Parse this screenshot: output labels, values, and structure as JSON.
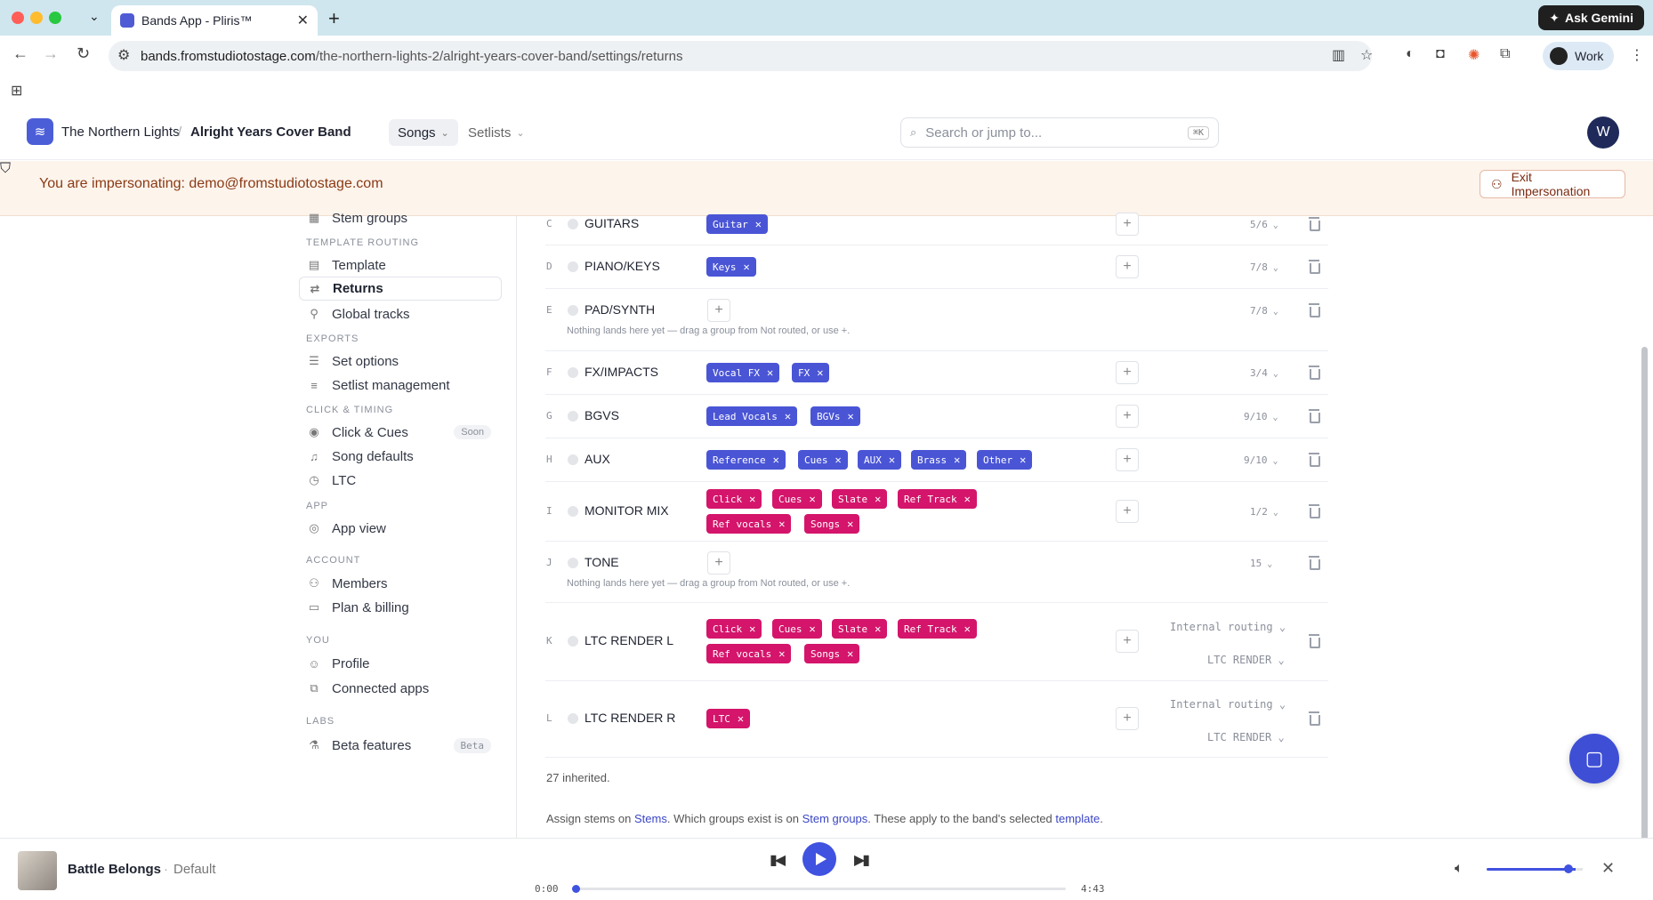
{
  "browser": {
    "tab_title": "Bands App - Pliris™",
    "url_host": "bands.fromstudiotostage.com",
    "url_path": "/the-northern-lights-2/alright-years-cover-band/settings/returns",
    "ask_gemini": "Ask Gemini",
    "profile": "Work"
  },
  "header": {
    "band": "The Northern Lights",
    "project": "Alright Years Cover Band",
    "nav_songs": "Songs",
    "nav_setlists": "Setlists",
    "search_placeholder": "Search or jump to...",
    "search_kbd": "⌘K",
    "avatar": "W"
  },
  "banner": {
    "text": "You are impersonating: demo@fromstudiotostage.com",
    "exit": "Exit Impersonation"
  },
  "sidebar": {
    "stem_groups": "Stem groups",
    "sec_template_routing": "TEMPLATE ROUTING",
    "template": "Template",
    "returns": "Returns",
    "global_tracks": "Global tracks",
    "sec_exports": "EXPORTS",
    "set_options": "Set options",
    "setlist_management": "Setlist management",
    "sec_click_timing": "CLICK & TIMING",
    "click_cues": "Click & Cues",
    "soon": "Soon",
    "song_defaults": "Song defaults",
    "ltc": "LTC",
    "sec_app": "APP",
    "app_view": "App view",
    "sec_account": "ACCOUNT",
    "members": "Members",
    "plan_billing": "Plan & billing",
    "sec_you": "YOU",
    "profile": "Profile",
    "connected_apps": "Connected apps",
    "sec_labs": "LABS",
    "beta_features": "Beta features",
    "beta": "Beta"
  },
  "returns": {
    "empty_hint": "Nothing lands here yet — drag a group from Not routed, or use +.",
    "internal_routing": "Internal routing",
    "ltc_render": "LTC RENDER",
    "rows": [
      {
        "letter": "C",
        "name": "GUITARS",
        "count": "5/6",
        "chips": [
          "Guitar"
        ]
      },
      {
        "letter": "D",
        "name": "PIANO/KEYS",
        "count": "7/8",
        "chips": [
          "Keys"
        ]
      },
      {
        "letter": "E",
        "name": "PAD/SYNTH",
        "count": "7/8",
        "chips": []
      },
      {
        "letter": "F",
        "name": "FX/IMPACTS",
        "count": "3/4",
        "chips": [
          "Vocal FX",
          "FX"
        ]
      },
      {
        "letter": "G",
        "name": "BGVS",
        "count": "9/10",
        "chips": [
          "Lead Vocals",
          "BGVs"
        ]
      },
      {
        "letter": "H",
        "name": "AUX",
        "count": "9/10",
        "chips": [
          "Reference",
          "Cues",
          "AUX",
          "Brass",
          "Other"
        ]
      },
      {
        "letter": "I",
        "name": "MONITOR MIX",
        "count": "1/2",
        "chips": [
          "Click",
          "Cues",
          "Slate",
          "Ref Track",
          "Ref vocals",
          "Songs"
        ]
      },
      {
        "letter": "J",
        "name": "TONE",
        "count": "15",
        "chips": []
      },
      {
        "letter": "K",
        "name": "LTC RENDER L",
        "count": "",
        "chips": [
          "Click",
          "Cues",
          "Slate",
          "Ref Track",
          "Ref vocals",
          "Songs"
        ]
      },
      {
        "letter": "L",
        "name": "LTC RENDER R",
        "count": "",
        "chips": [
          "LTC"
        ]
      }
    ],
    "inherited": "27 inherited.",
    "foot_1": "Assign stems on ",
    "foot_stems": "Stems",
    "foot_2": ". Which groups exist is on ",
    "foot_groups": "Stem groups",
    "foot_3": ". These apply to the band's selected ",
    "foot_template": "template",
    "foot_4": "."
  },
  "player": {
    "song": "Battle Belongs",
    "sep": "·",
    "version": "Default",
    "elapsed": "0:00",
    "duration": "4:43",
    "progress_fraction": 0.0,
    "volume_fraction": 0.85
  },
  "colors": {
    "accent": "#4052e0",
    "chip_blue": "#4a55d6",
    "chip_pink": "#d4156b"
  }
}
